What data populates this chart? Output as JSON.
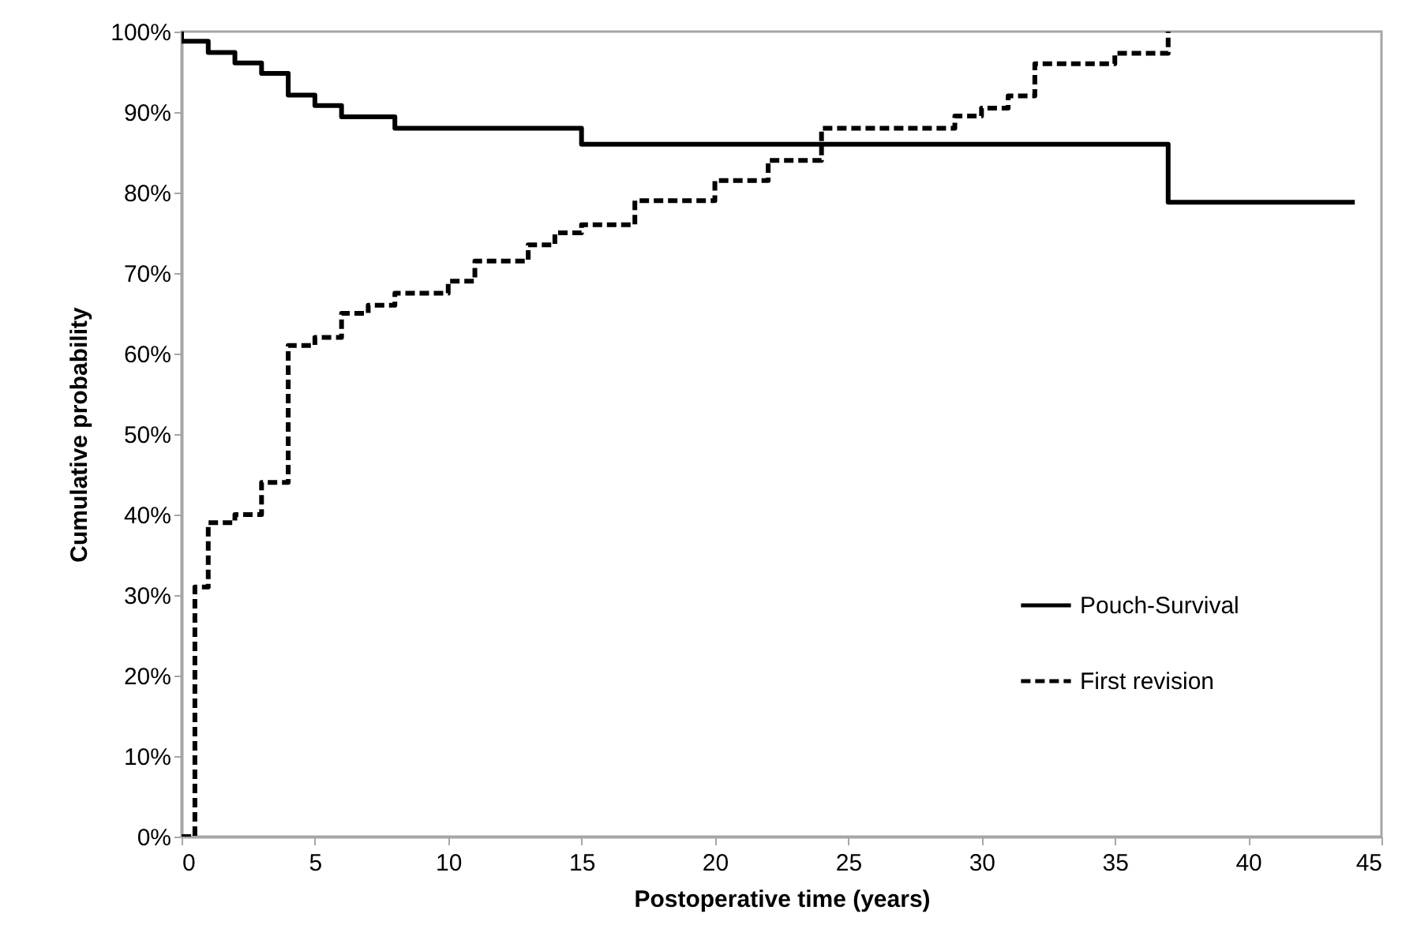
{
  "chart_data": {
    "type": "step",
    "xlabel": "Postoperative time  (years)",
    "ylabel": "Cumulative probability",
    "xlim": [
      0,
      45
    ],
    "xticks": [
      0,
      5,
      10,
      15,
      20,
      25,
      30,
      35,
      40,
      45
    ],
    "ylim": [
      0,
      100
    ],
    "yticks": [
      {
        "value": 0,
        "label": "0%"
      },
      {
        "value": 10,
        "label": "10%"
      },
      {
        "value": 20,
        "label": "20%"
      },
      {
        "value": 30,
        "label": "30%"
      },
      {
        "value": 40,
        "label": "40%"
      },
      {
        "value": 50,
        "label": "50%"
      },
      {
        "value": 60,
        "label": "60%"
      },
      {
        "value": 70,
        "label": "70%"
      },
      {
        "value": 80,
        "label": "80%"
      },
      {
        "value": 90,
        "label": "90%"
      },
      {
        "value": 100,
        "label": "100%"
      }
    ],
    "grid": false,
    "legend": "bottom right",
    "marker": "none",
    "series": [
      {
        "name": "Pouch-Survival",
        "color": "#000000",
        "line_style": "solid",
        "x": [
          0,
          0,
          1,
          2,
          3,
          4,
          5,
          6,
          8,
          15,
          37,
          44
        ],
        "values": [
          100,
          98.8,
          97.4,
          96.1,
          94.8,
          92.1,
          90.8,
          89.4,
          88,
          86,
          78.8,
          78.8
        ]
      },
      {
        "name": "First revision",
        "color": "#000000",
        "line_style": "dashed",
        "x": [
          0,
          0.5,
          1,
          2,
          3,
          4,
          5,
          6,
          7,
          8,
          10,
          11,
          13,
          14,
          15,
          17,
          20,
          22,
          24,
          29,
          30,
          31,
          32,
          35,
          37
        ],
        "values": [
          0,
          31,
          39,
          40,
          44,
          61,
          62,
          65,
          66,
          67.5,
          69,
          71.5,
          73.5,
          75,
          76,
          79,
          81.5,
          84,
          88,
          89.5,
          90.5,
          92,
          96,
          97.3,
          100
        ]
      }
    ]
  }
}
